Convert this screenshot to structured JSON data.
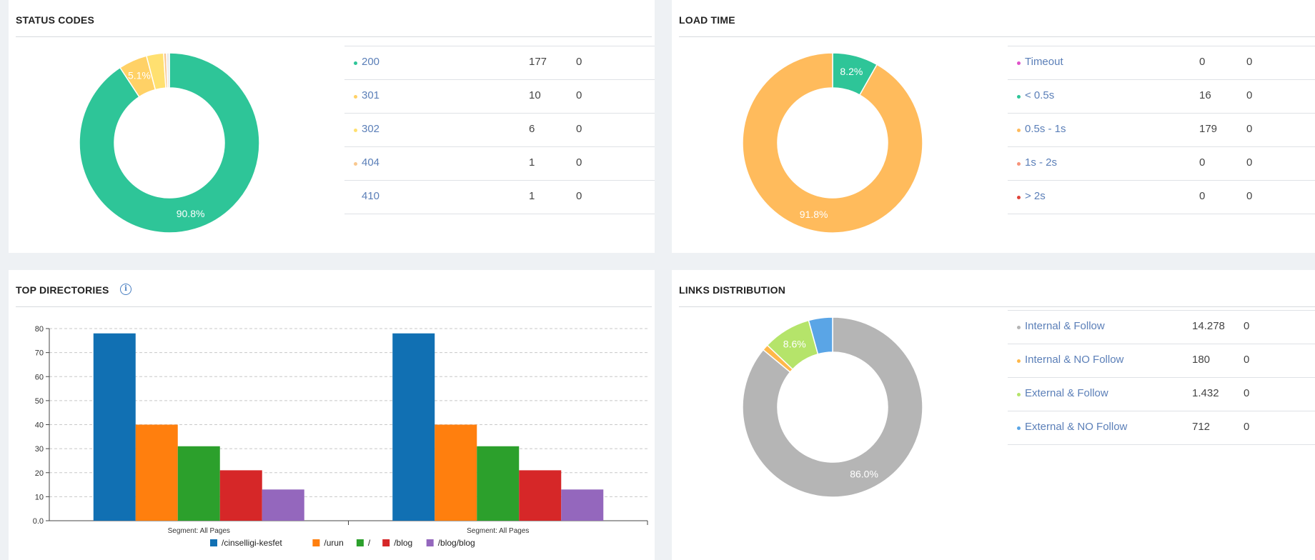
{
  "panels": {
    "status": {
      "title": "STATUS CODES",
      "chart_data": {
        "type": "pie",
        "categories": [
          "200",
          "301",
          "302",
          "404",
          "410"
        ],
        "values": [
          177,
          10,
          6,
          1,
          1
        ],
        "slice_labels": [
          "90.8%",
          "5.1%",
          "",
          "",
          ""
        ],
        "colors": [
          "#2ec598",
          "#ffd166",
          "#ffe070",
          "#f9c88f",
          "#e8e8e8"
        ]
      },
      "legend": [
        {
          "label": "200",
          "count": "177",
          "extra": "0",
          "color": "#2ec598"
        },
        {
          "label": "301",
          "count": "10",
          "extra": "0",
          "color": "#ffd166"
        },
        {
          "label": "302",
          "count": "6",
          "extra": "0",
          "color": "#ffe070"
        },
        {
          "label": "404",
          "count": "1",
          "extra": "0",
          "color": "#f9c88f"
        },
        {
          "label": "410",
          "count": "1",
          "extra": "0",
          "color": ""
        }
      ]
    },
    "load": {
      "title": "LOAD TIME",
      "chart_data": {
        "type": "pie",
        "categories": [
          "Timeout",
          "< 0.5s",
          "0.5s - 1s",
          "1s - 2s",
          "> 2s"
        ],
        "values": [
          0,
          16,
          179,
          0,
          0
        ],
        "slice_labels": [
          "",
          "8.2%",
          "91.8%",
          "",
          ""
        ],
        "colors": [
          "#e052c9",
          "#2ec598",
          "#ffbb5c",
          "#f7937a",
          "#e0443a"
        ]
      },
      "legend": [
        {
          "label": "Timeout",
          "count": "0",
          "extra": "0",
          "color": "#e052c9"
        },
        {
          "label": "< 0.5s",
          "count": "16",
          "extra": "0",
          "color": "#2ec598"
        },
        {
          "label": "0.5s - 1s",
          "count": "179",
          "extra": "0",
          "color": "#ffbb5c"
        },
        {
          "label": "1s - 2s",
          "count": "0",
          "extra": "0",
          "color": "#f7937a"
        },
        {
          "label": "> 2s",
          "count": "0",
          "extra": "0",
          "color": "#e0443a"
        }
      ]
    },
    "dirs": {
      "title": "TOP DIRECTORIES",
      "chart_data": {
        "type": "bar",
        "categories": [
          "Segment: All Pages",
          "Segment: All Pages"
        ],
        "series": [
          {
            "name": "/cinselligi-kesfet",
            "values": [
              78,
              78
            ],
            "color": "#1170b3"
          },
          {
            "name": "/urun",
            "values": [
              40,
              40
            ],
            "color": "#ff7f0e"
          },
          {
            "name": "/",
            "values": [
              31,
              31
            ],
            "color": "#2ca02c"
          },
          {
            "name": "/blog",
            "values": [
              21,
              21
            ],
            "color": "#d62728"
          },
          {
            "name": "/blog/blog",
            "values": [
              13,
              13
            ],
            "color": "#9467bd"
          }
        ],
        "ylim": [
          0,
          80
        ],
        "yticks": [
          "0.0",
          "10",
          "20",
          "30",
          "40",
          "50",
          "60",
          "70",
          "80"
        ],
        "grid": true,
        "legend": "bottom"
      }
    },
    "links": {
      "title": "LINKS DISTRIBUTION",
      "chart_data": {
        "type": "pie",
        "categories": [
          "Internal & Follow",
          "Internal & NO Follow",
          "External & Follow",
          "External & NO Follow"
        ],
        "values": [
          14278,
          180,
          1432,
          712
        ],
        "slice_labels": [
          "86.0%",
          "",
          "8.6%",
          ""
        ],
        "colors": [
          "#b5b5b5",
          "#ffb84a",
          "#b5e46a",
          "#5aa5e6"
        ]
      },
      "legend": [
        {
          "label": "Internal & Follow",
          "count": "14.278",
          "extra": "0",
          "color": "#b5b5b5"
        },
        {
          "label": "Internal & NO Follow",
          "count": "180",
          "extra": "0",
          "color": "#ffb84a"
        },
        {
          "label": "External & Follow",
          "count": "1.432",
          "extra": "0",
          "color": "#b5e46a"
        },
        {
          "label": "External & NO Follow",
          "count": "712",
          "extra": "0",
          "color": "#5aa5e6"
        }
      ]
    }
  }
}
